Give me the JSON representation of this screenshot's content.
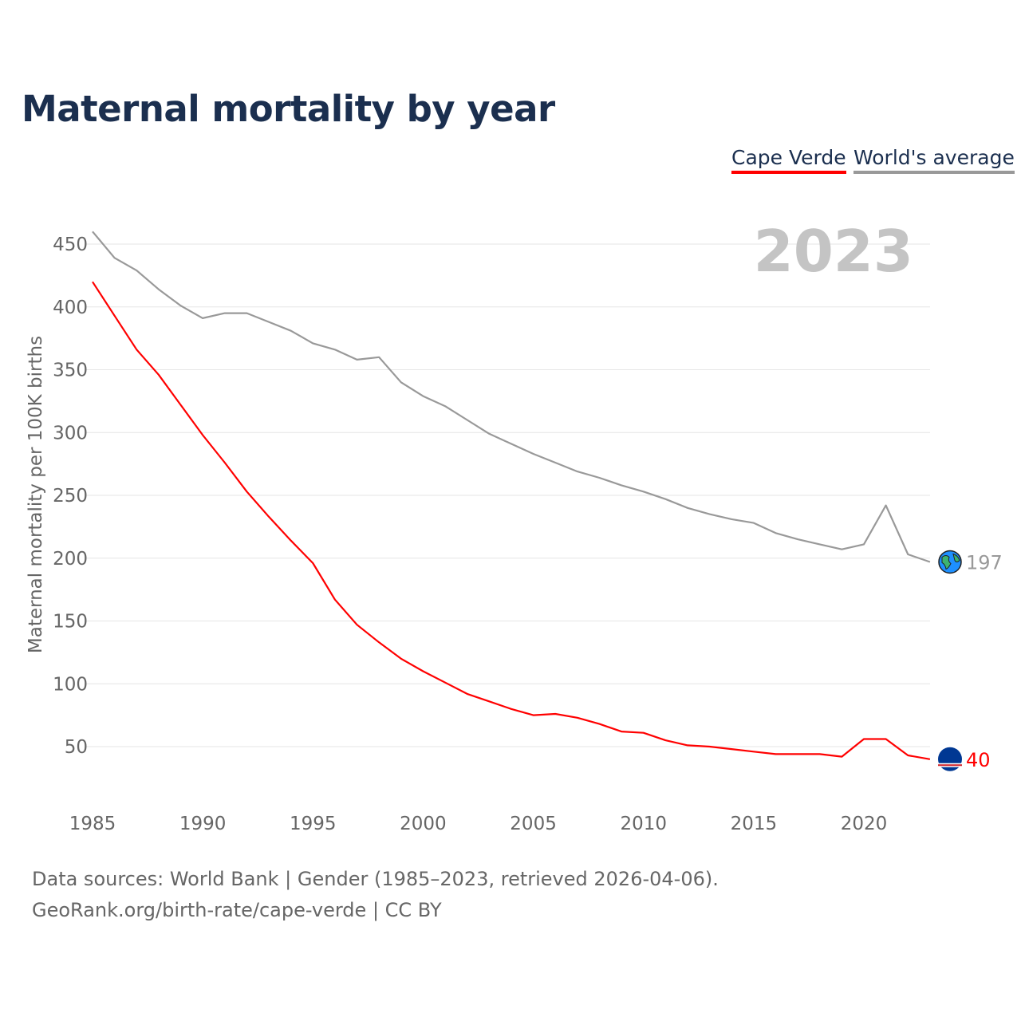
{
  "title": "Maternal mortality by year",
  "legend": {
    "country": "Cape Verde",
    "world": "World's average"
  },
  "footer": {
    "sources": "Data sources: World Bank | Gender (1985–2023, retrieved 2026-04-06).",
    "credit": "GeoRank.org/birth-rate/cape-verde | CC BY"
  },
  "chart_data": {
    "type": "line",
    "title": "Maternal mortality by year",
    "ylabel": "Maternal mortality per 100K births",
    "xlabel": "",
    "year_label": "2023",
    "xlim": [
      1985,
      2023
    ],
    "ylim": [
      25,
      460
    ],
    "xticks": [
      1985,
      1990,
      1995,
      2000,
      2005,
      2010,
      2015,
      2020
    ],
    "yticks": [
      50,
      100,
      150,
      200,
      250,
      300,
      350,
      400,
      450
    ],
    "grid": true,
    "legend_position": "top-right",
    "x": [
      1985,
      1986,
      1987,
      1988,
      1989,
      1990,
      1991,
      1992,
      1993,
      1994,
      1995,
      1996,
      1997,
      1998,
      1999,
      2000,
      2001,
      2002,
      2003,
      2004,
      2005,
      2006,
      2007,
      2008,
      2009,
      2010,
      2011,
      2012,
      2013,
      2014,
      2015,
      2016,
      2017,
      2018,
      2019,
      2020,
      2021,
      2022,
      2023
    ],
    "series": [
      {
        "name": "Cape Verde",
        "color": "#ff0000",
        "end_label": "40",
        "icon": "cape-verde-flag",
        "values": [
          420,
          393,
          366,
          346,
          322,
          298,
          276,
          253,
          233,
          214,
          196,
          167,
          147,
          133,
          120,
          110,
          101,
          92,
          86,
          80,
          75,
          76,
          73,
          68,
          62,
          61,
          55,
          51,
          50,
          48,
          46,
          44,
          44,
          44,
          42,
          56,
          56,
          43,
          40
        ]
      },
      {
        "name": "World's average",
        "color": "#999999",
        "end_label": "197",
        "icon": "globe",
        "values": [
          460,
          439,
          429,
          414,
          401,
          391,
          395,
          395,
          388,
          381,
          371,
          366,
          358,
          360,
          340,
          329,
          321,
          310,
          299,
          291,
          283,
          276,
          269,
          264,
          258,
          253,
          247,
          240,
          235,
          231,
          228,
          220,
          215,
          211,
          207,
          211,
          242,
          203,
          197
        ]
      }
    ]
  }
}
